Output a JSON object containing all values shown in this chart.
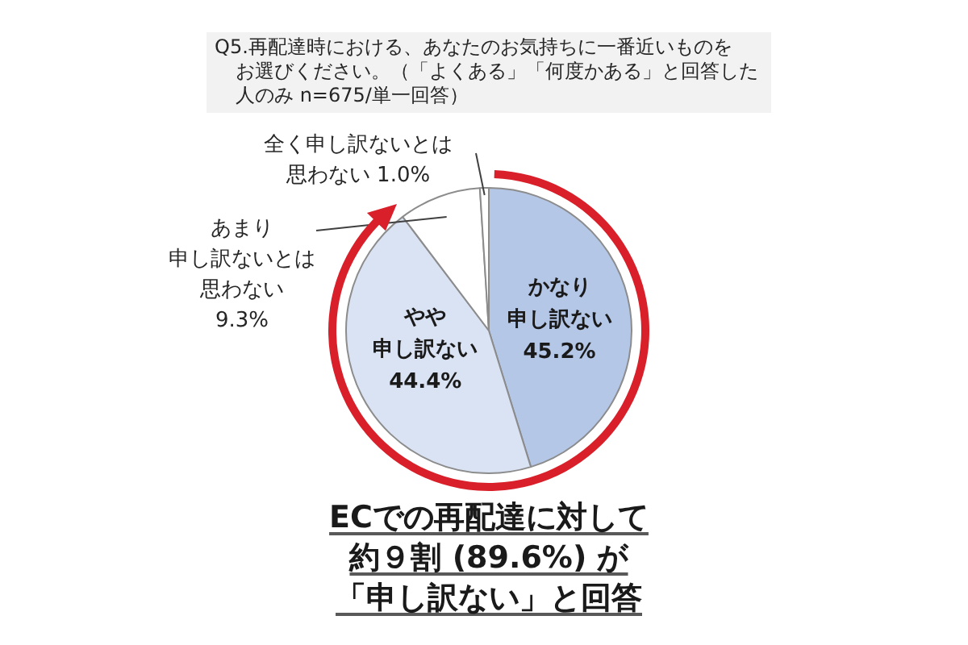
{
  "chart_data": {
    "type": "pie",
    "title": "Q5.再配達時における、あなたのお気持ちに一番近いものをお選びください。（「よくある」「何度かある」と回答した人のみ n=675/単一回答）",
    "categories": [
      "かなり申し訳ない",
      "やや申し訳ない",
      "あまり申し訳ないとは思わない",
      "全く申し訳ないとは思わない"
    ],
    "values": [
      45.2,
      44.4,
      9.3,
      1.0
    ],
    "colors": [
      "#b4c7e7",
      "#dae3f3",
      "#ffffff",
      "#ffffff"
    ],
    "value_labels": [
      "45.2%",
      "44.4%",
      "9.3%",
      "1.0%"
    ],
    "legend": false,
    "annotations": [
      "ECでの再配達に対して",
      "約９割 (89.6%) が",
      "「申し訳ない」と回答"
    ]
  }
}
